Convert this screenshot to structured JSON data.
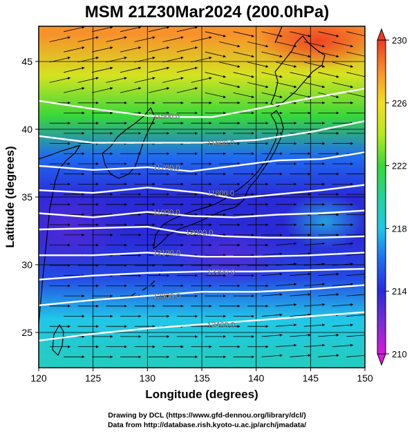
{
  "title": "MSM 21Z30Mar2024 (200.0hPa)",
  "credits": [
    "Drawing by DCL (https://www.gfd-dennou.org/library/dcl/)",
    "Data from http://database.rish.kyoto-u.ac.jp/arch/jmadata/"
  ],
  "chart_data": {
    "type": "heatmap",
    "title": "MSM 21Z30Mar2024 (200.0hPa)",
    "xlabel": "Longitude (degrees)",
    "ylabel": "Latitude  (degrees)",
    "xlim": [
      120,
      150
    ],
    "ylim": [
      22.4,
      47.6
    ],
    "xticks": [
      120,
      125,
      130,
      135,
      140,
      145,
      150
    ],
    "yticks": [
      25,
      30,
      35,
      40,
      45
    ],
    "colorbar": {
      "range": [
        210,
        230
      ],
      "ticks": [
        210,
        214,
        218,
        222,
        226,
        230
      ],
      "colors": [
        "#d81ad8",
        "#7a2ed6",
        "#2a2ad8",
        "#1f6cf0",
        "#21c7e8",
        "#25d19c",
        "#38d83a",
        "#b8e81e",
        "#f2de22",
        "#f7922a",
        "#ee3a22"
      ]
    },
    "temperature_field_K": [
      {
        "lat": 47,
        "value": 228
      },
      {
        "lat": 44,
        "value": 225
      },
      {
        "lat": 41,
        "value": 222
      },
      {
        "lat": 38,
        "value": 216
      },
      {
        "lat": 35,
        "value": 214
      },
      {
        "lat": 32,
        "value": 214
      },
      {
        "lat": 29,
        "value": 215
      },
      {
        "lat": 26,
        "value": 218
      },
      {
        "lat": 23,
        "value": 219
      }
    ],
    "contours": [
      {
        "label": "11500.0",
        "value": 11500,
        "points": [
          [
            120,
            42.1
          ],
          [
            125,
            41.5
          ],
          [
            130,
            41.0
          ],
          [
            133,
            40.9
          ],
          [
            136,
            40.9
          ],
          [
            140,
            41.5
          ],
          [
            145,
            42.3
          ],
          [
            150,
            43.0
          ]
        ]
      },
      {
        "label": "11600.0",
        "value": 11600,
        "points": [
          [
            120,
            39.5
          ],
          [
            125,
            39.0
          ],
          [
            130,
            39.0
          ],
          [
            135,
            39.0
          ],
          [
            140,
            39.2
          ],
          [
            145,
            39.8
          ],
          [
            150,
            40.6
          ]
        ]
      },
      {
        "label": "11700.0",
        "value": 11700,
        "points": [
          [
            120,
            37.3
          ],
          [
            125,
            37.0
          ],
          [
            130,
            37.2
          ],
          [
            134,
            36.9
          ],
          [
            138,
            37.3
          ],
          [
            142,
            37.7
          ],
          [
            146,
            37.8
          ],
          [
            150,
            38.3
          ]
        ]
      },
      {
        "label": "11800.0",
        "value": 11800,
        "points": [
          [
            120,
            35.5
          ],
          [
            125,
            35.3
          ],
          [
            130,
            35.7
          ],
          [
            135,
            35.3
          ],
          [
            138,
            34.9
          ],
          [
            142,
            35.2
          ],
          [
            146,
            35.5
          ],
          [
            150,
            35.9
          ]
        ]
      },
      {
        "label": "11900.0",
        "value": 11900,
        "points": [
          [
            120,
            33.8
          ],
          [
            125,
            33.5
          ],
          [
            130,
            33.9
          ],
          [
            134,
            33.6
          ],
          [
            138,
            33.5
          ],
          [
            142,
            33.7
          ],
          [
            146,
            33.8
          ],
          [
            150,
            34.0
          ]
        ]
      },
      {
        "label": "12000.0",
        "value": 12000,
        "points": [
          [
            120,
            32.6
          ],
          [
            125,
            32.7
          ],
          [
            130,
            32.8
          ],
          [
            133,
            32.4
          ],
          [
            137,
            32.1
          ],
          [
            141,
            32.0
          ],
          [
            146,
            32.0
          ],
          [
            150,
            32.1
          ]
        ]
      },
      {
        "label": "12100.0",
        "value": 12100,
        "points": [
          [
            120,
            30.7
          ],
          [
            125,
            30.7
          ],
          [
            130,
            30.9
          ],
          [
            135,
            30.6
          ],
          [
            140,
            30.6
          ],
          [
            145,
            30.7
          ],
          [
            150,
            30.9
          ]
        ]
      },
      {
        "label": "12200.0",
        "value": 12200,
        "points": [
          [
            120,
            28.9
          ],
          [
            125,
            29.2
          ],
          [
            130,
            29.4
          ],
          [
            135,
            29.5
          ],
          [
            140,
            29.5
          ],
          [
            145,
            29.6
          ],
          [
            150,
            29.7
          ]
        ]
      },
      {
        "label": "12300.0",
        "value": 12300,
        "points": [
          [
            120,
            27.0
          ],
          [
            125,
            27.4
          ],
          [
            130,
            27.7
          ],
          [
            135,
            28.0
          ],
          [
            140,
            28.0
          ],
          [
            145,
            28.2
          ],
          [
            150,
            28.5
          ]
        ]
      },
      {
        "label": "12400.0",
        "value": 12400,
        "points": [
          [
            120,
            24.4
          ],
          [
            125,
            24.9
          ],
          [
            130,
            25.3
          ],
          [
            135,
            25.6
          ],
          [
            140,
            25.9
          ],
          [
            145,
            26.2
          ],
          [
            150,
            26.5
          ]
        ]
      }
    ],
    "wind_flow": "westerly streamlines (arrows) across the whole domain",
    "grid": true
  }
}
